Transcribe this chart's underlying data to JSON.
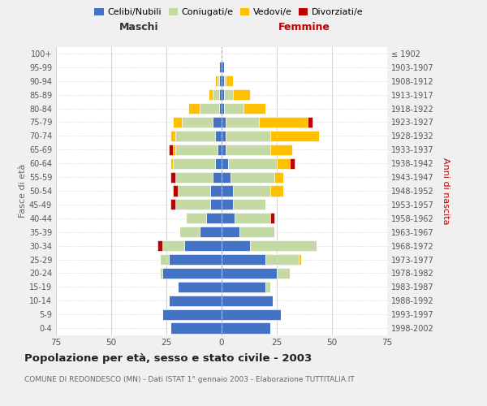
{
  "age_groups": [
    "0-4",
    "5-9",
    "10-14",
    "15-19",
    "20-24",
    "25-29",
    "30-34",
    "35-39",
    "40-44",
    "45-49",
    "50-54",
    "55-59",
    "60-64",
    "65-69",
    "70-74",
    "75-79",
    "80-84",
    "85-89",
    "90-94",
    "95-99",
    "100+"
  ],
  "birth_years": [
    "1998-2002",
    "1993-1997",
    "1988-1992",
    "1983-1987",
    "1978-1982",
    "1973-1977",
    "1968-1972",
    "1963-1967",
    "1958-1962",
    "1953-1957",
    "1948-1952",
    "1943-1947",
    "1938-1942",
    "1933-1937",
    "1928-1932",
    "1923-1927",
    "1918-1922",
    "1913-1917",
    "1908-1912",
    "1903-1907",
    "≤ 1902"
  ],
  "colors": {
    "celibe": "#4472c4",
    "coniugato": "#c5d9a4",
    "vedovo": "#ffc000",
    "divorziato": "#c00000"
  },
  "maschi": {
    "celibe": [
      23,
      27,
      24,
      20,
      27,
      24,
      17,
      10,
      7,
      5,
      5,
      4,
      3,
      2,
      3,
      4,
      1,
      1,
      1,
      1,
      0
    ],
    "coniugato": [
      0,
      0,
      0,
      0,
      1,
      4,
      10,
      9,
      9,
      16,
      15,
      17,
      19,
      19,
      18,
      14,
      9,
      3,
      1,
      0,
      0
    ],
    "vedovo": [
      0,
      0,
      0,
      0,
      0,
      0,
      0,
      0,
      0,
      0,
      0,
      0,
      1,
      1,
      2,
      4,
      5,
      2,
      1,
      0,
      0
    ],
    "divorziato": [
      0,
      0,
      0,
      0,
      0,
      0,
      2,
      0,
      0,
      2,
      2,
      2,
      0,
      2,
      0,
      0,
      0,
      0,
      0,
      0,
      0
    ]
  },
  "femmine": {
    "celibe": [
      22,
      27,
      23,
      20,
      25,
      20,
      13,
      8,
      6,
      5,
      5,
      4,
      3,
      2,
      2,
      2,
      1,
      1,
      1,
      1,
      0
    ],
    "coniugato": [
      0,
      0,
      0,
      2,
      6,
      15,
      30,
      16,
      16,
      15,
      17,
      20,
      22,
      20,
      20,
      15,
      9,
      4,
      1,
      0,
      0
    ],
    "vedovo": [
      0,
      0,
      0,
      0,
      0,
      1,
      0,
      0,
      0,
      0,
      6,
      4,
      6,
      10,
      22,
      22,
      10,
      8,
      3,
      0,
      0
    ],
    "divorziato": [
      0,
      0,
      0,
      0,
      0,
      0,
      0,
      0,
      2,
      0,
      0,
      0,
      2,
      0,
      0,
      2,
      0,
      0,
      0,
      0,
      0
    ]
  },
  "xlim": 75,
  "title": "Popolazione per età, sesso e stato civile - 2003",
  "subtitle": "COMUNE DI REDONDESCO (MN) - Dati ISTAT 1° gennaio 2003 - Elaborazione TUTTITALIA.IT",
  "ylabel_left": "Fasce di età",
  "ylabel_right": "Anni di nascita",
  "xlabel_left": "Maschi",
  "xlabel_right": "Femmine",
  "legend_labels": [
    "Celibi/Nubili",
    "Coniugati/e",
    "Vedovi/e",
    "Divorziati/e"
  ],
  "bg_color": "#f0f0f0",
  "plot_bg_color": "#ffffff",
  "xticks": [
    75,
    50,
    25,
    0,
    25,
    50,
    75
  ]
}
